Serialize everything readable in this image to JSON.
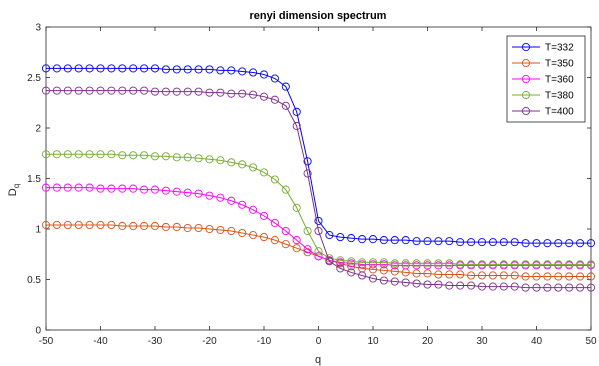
{
  "chart_data": {
    "type": "line",
    "title": "renyi dimension spectrum",
    "xlabel": "q",
    "ylabel": "D",
    "ylabel_subscript": "q",
    "xlim": [
      -50,
      50
    ],
    "ylim": [
      0,
      3
    ],
    "xticks": [
      -50,
      -40,
      -30,
      -20,
      -10,
      0,
      10,
      20,
      30,
      40,
      50
    ],
    "yticks": [
      0,
      0.5,
      1,
      1.5,
      2,
      2.5,
      3
    ],
    "ytick_labels": [
      "0",
      "0.5",
      "1",
      "1.5",
      "2",
      "2.5",
      "3"
    ],
    "grid": false,
    "legend_location": "top-right",
    "marker": "circle",
    "x": [
      -50,
      -48,
      -46,
      -44,
      -42,
      -40,
      -38,
      -36,
      -34,
      -32,
      -30,
      -28,
      -26,
      -24,
      -22,
      -20,
      -18,
      -16,
      -14,
      -12,
      -10,
      -8,
      -6,
      -4,
      -2,
      0,
      2,
      4,
      6,
      8,
      10,
      12,
      14,
      16,
      18,
      20,
      22,
      24,
      26,
      28,
      30,
      32,
      34,
      36,
      38,
      40,
      42,
      44,
      46,
      48,
      50
    ],
    "series": [
      {
        "name": "T=332",
        "color": "#0000ff",
        "values": [
          2.59,
          2.59,
          2.59,
          2.59,
          2.59,
          2.59,
          2.59,
          2.59,
          2.59,
          2.59,
          2.59,
          2.58,
          2.58,
          2.58,
          2.58,
          2.58,
          2.57,
          2.57,
          2.56,
          2.55,
          2.53,
          2.49,
          2.41,
          2.16,
          1.67,
          1.08,
          0.94,
          0.92,
          0.91,
          0.9,
          0.9,
          0.89,
          0.89,
          0.89,
          0.88,
          0.88,
          0.88,
          0.88,
          0.87,
          0.87,
          0.87,
          0.87,
          0.87,
          0.87,
          0.86,
          0.86,
          0.86,
          0.86,
          0.86,
          0.86,
          0.86
        ]
      },
      {
        "name": "T=350",
        "color": "#d95319",
        "values": [
          1.04,
          1.04,
          1.04,
          1.04,
          1.04,
          1.04,
          1.04,
          1.03,
          1.03,
          1.03,
          1.03,
          1.02,
          1.02,
          1.01,
          1.01,
          1.0,
          0.99,
          0.98,
          0.96,
          0.94,
          0.92,
          0.89,
          0.85,
          0.81,
          0.77,
          0.73,
          0.69,
          0.66,
          0.63,
          0.61,
          0.6,
          0.59,
          0.58,
          0.57,
          0.56,
          0.56,
          0.55,
          0.55,
          0.55,
          0.54,
          0.54,
          0.54,
          0.54,
          0.54,
          0.53,
          0.53,
          0.53,
          0.53,
          0.53,
          0.53,
          0.53
        ]
      },
      {
        "name": "T=360",
        "color": "#ff00ff",
        "values": [
          1.41,
          1.41,
          1.41,
          1.41,
          1.41,
          1.4,
          1.4,
          1.4,
          1.4,
          1.39,
          1.39,
          1.38,
          1.37,
          1.36,
          1.35,
          1.33,
          1.31,
          1.28,
          1.24,
          1.19,
          1.13,
          1.06,
          0.98,
          0.89,
          0.8,
          0.73,
          0.69,
          0.67,
          0.66,
          0.65,
          0.65,
          0.65,
          0.64,
          0.64,
          0.64,
          0.64,
          0.64,
          0.64,
          0.64,
          0.64,
          0.64,
          0.64,
          0.64,
          0.64,
          0.64,
          0.64,
          0.64,
          0.64,
          0.64,
          0.64,
          0.64
        ]
      },
      {
        "name": "T=380",
        "color": "#77ac30",
        "values": [
          1.74,
          1.74,
          1.74,
          1.74,
          1.74,
          1.74,
          1.74,
          1.73,
          1.73,
          1.73,
          1.72,
          1.72,
          1.71,
          1.71,
          1.7,
          1.69,
          1.68,
          1.66,
          1.64,
          1.61,
          1.56,
          1.49,
          1.39,
          1.21,
          0.98,
          0.78,
          0.71,
          0.69,
          0.68,
          0.67,
          0.67,
          0.67,
          0.66,
          0.66,
          0.66,
          0.66,
          0.66,
          0.66,
          0.65,
          0.65,
          0.65,
          0.65,
          0.65,
          0.65,
          0.65,
          0.65,
          0.65,
          0.65,
          0.65,
          0.65,
          0.65
        ]
      },
      {
        "name": "T=400",
        "color": "#7e2f8e",
        "values": [
          2.37,
          2.37,
          2.37,
          2.37,
          2.37,
          2.37,
          2.37,
          2.37,
          2.37,
          2.37,
          2.36,
          2.36,
          2.36,
          2.36,
          2.36,
          2.35,
          2.35,
          2.34,
          2.34,
          2.33,
          2.31,
          2.28,
          2.22,
          2.02,
          1.55,
          0.98,
          0.68,
          0.61,
          0.57,
          0.54,
          0.51,
          0.49,
          0.48,
          0.47,
          0.46,
          0.45,
          0.45,
          0.44,
          0.44,
          0.44,
          0.43,
          0.43,
          0.43,
          0.43,
          0.42,
          0.42,
          0.42,
          0.42,
          0.42,
          0.42,
          0.42
        ]
      }
    ]
  }
}
